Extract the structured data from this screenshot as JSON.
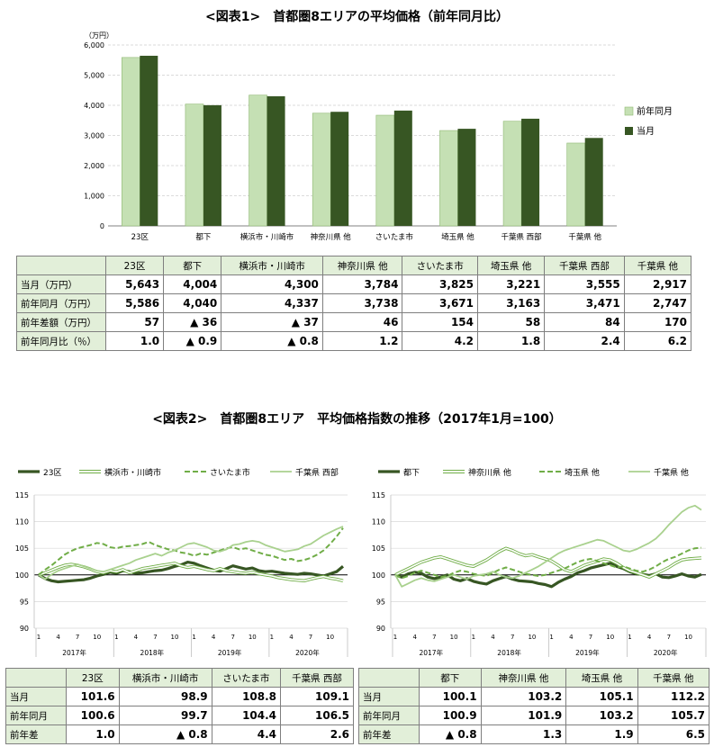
{
  "fig1": {
    "title": "<図表1>　首都圏8エリアの平均価格（前年同月比）",
    "unit": "（万円）",
    "legend": [
      "前年同月",
      "当月"
    ],
    "colors": {
      "prev": "#c5e0b4",
      "curr": "#375623"
    },
    "chart_data": {
      "type": "bar",
      "categories": [
        "23区",
        "都下",
        "横浜市・川崎市",
        "神奈川県 他",
        "さいたま市",
        "埼玉県 他",
        "千葉県 西部",
        "千葉県 他"
      ],
      "series": [
        {
          "name": "前年同月",
          "values": [
            5586,
            4040,
            4337,
            3738,
            3671,
            3163,
            3471,
            2747
          ]
        },
        {
          "name": "当月",
          "values": [
            5643,
            4004,
            4300,
            3784,
            3825,
            3221,
            3555,
            2917
          ]
        }
      ],
      "ylim": [
        0,
        6000
      ],
      "yticks": [
        "0",
        "1,000",
        "2,000",
        "3,000",
        "4,000",
        "5,000",
        "6,000"
      ],
      "grid": true,
      "legend_position": "right"
    },
    "table": {
      "header": [
        "23区",
        "都下",
        "横浜市・川崎市",
        "神奈川県 他",
        "さいたま市",
        "埼玉県 他",
        "千葉県 西部",
        "千葉県 他"
      ],
      "rows": [
        {
          "label": "当月（万円）",
          "cells": [
            "5,643",
            "4,004",
            "4,300",
            "3,784",
            "3,825",
            "3,221",
            "3,555",
            "2,917"
          ]
        },
        {
          "label": "前年同月（万円）",
          "cells": [
            "5,586",
            "4,040",
            "4,337",
            "3,738",
            "3,671",
            "3,163",
            "3,471",
            "2,747"
          ]
        },
        {
          "label": "前年差額（万円）",
          "cells": [
            "57",
            "▲ 36",
            "▲ 37",
            "46",
            "154",
            "58",
            "84",
            "170"
          ]
        },
        {
          "label": "前年同月比（％）",
          "cells": [
            "1.0",
            "▲ 0.9",
            "▲ 0.8",
            "1.2",
            "4.2",
            "1.8",
            "2.4",
            "6.2"
          ]
        }
      ]
    }
  },
  "fig2": {
    "title": "<図表2>　首都圏8エリア　平均価格指数の推移（2017年1月=100）",
    "colors": {
      "dark": "#375623",
      "mid": "#70ad47",
      "light": "#a9d18e"
    },
    "chart_data": [
      {
        "type": "line",
        "ylim": [
          90,
          115
        ],
        "yticks": [
          "90",
          "95",
          "100",
          "105",
          "110",
          "115"
        ],
        "xticks": [
          "1",
          "4",
          "7",
          "10",
          "1",
          "4",
          "7",
          "10",
          "1",
          "4",
          "7",
          "10",
          "1",
          "4",
          "7",
          "10"
        ],
        "years": [
          "2017年",
          "2018年",
          "2019年",
          "2020年"
        ],
        "series": [
          {
            "name": "23区",
            "style": "dark",
            "values": [
              100,
              99.3,
              98.9,
              98.7,
              98.8,
              98.9,
              99.0,
              99.1,
              99.4,
              99.8,
              100.1,
              100.5,
              100.3,
              100.8,
              100.6,
              100.3,
              100.4,
              100.6,
              100.8,
              100.9,
              101.2,
              101.6,
              101.9,
              102.4,
              102.2,
              101.7,
              101.3,
              100.9,
              100.7,
              101.2,
              101.7,
              101.4,
              101.1,
              101.3,
              100.8,
              100.6,
              100.7,
              100.5,
              100.3,
              100.2,
              100.1,
              100.3,
              100.2,
              100.0,
              99.8,
              100.2,
              100.6,
              101.6
            ]
          },
          {
            "name": "横浜市・川崎市",
            "style": "mid",
            "values": [
              100,
              100.4,
              100.9,
              101.4,
              101.8,
              102.0,
              101.8,
              101.5,
              101.1,
              100.6,
              100.4,
              100.8,
              100.6,
              101.0,
              100.4,
              100.8,
              101.2,
              101.4,
              101.6,
              101.8,
              102.0,
              102.2,
              101.7,
              101.4,
              101.6,
              101.3,
              101.0,
              100.8,
              101.2,
              100.8,
              100.6,
              100.4,
              100.3,
              100.5,
              100.2,
              100.0,
              99.8,
              99.5,
              99.3,
              99.1,
              99.0,
              98.9,
              99.2,
              99.5,
              99.7,
              99.4,
              99.2,
              98.9
            ]
          },
          {
            "name": "さいたま市",
            "style": "dash",
            "values": [
              100,
              101.0,
              101.8,
              102.8,
              103.8,
              104.5,
              105.0,
              105.3,
              105.6,
              106.0,
              105.8,
              105.2,
              105.0,
              105.3,
              105.4,
              105.6,
              105.8,
              106.2,
              105.6,
              105.2,
              104.8,
              104.6,
              104.2,
              104.0,
              103.6,
              104.0,
              103.8,
              104.2,
              104.6,
              105.0,
              105.2,
              104.8,
              105.0,
              104.6,
              104.2,
              103.8,
              103.6,
              103.2,
              102.8,
              103.0,
              102.6,
              102.8,
              103.2,
              103.8,
              104.6,
              105.8,
              107.2,
              108.8
            ]
          },
          {
            "name": "千葉県 西部",
            "style": "light",
            "values": [
              100,
              99.2,
              100.1,
              100.8,
              101.2,
              101.6,
              102.0,
              101.6,
              101.2,
              100.8,
              100.6,
              101.0,
              101.4,
              101.8,
              102.2,
              102.8,
              103.2,
              103.6,
              104.0,
              103.6,
              104.2,
              104.6,
              105.2,
              105.8,
              106.0,
              105.6,
              105.2,
              104.6,
              104.4,
              104.8,
              105.6,
              105.8,
              106.2,
              106.4,
              106.2,
              105.6,
              105.2,
              104.8,
              104.4,
              104.6,
              104.8,
              105.4,
              105.8,
              106.6,
              107.4,
              108.0,
              108.6,
              109.1
            ]
          }
        ]
      },
      {
        "type": "line",
        "ylim": [
          90,
          115
        ],
        "yticks": [
          "90",
          "95",
          "100",
          "105",
          "110",
          "115"
        ],
        "xticks": [
          "1",
          "4",
          "7",
          "10",
          "1",
          "4",
          "7",
          "10",
          "1",
          "4",
          "7",
          "10",
          "1",
          "4",
          "7",
          "10"
        ],
        "years": [
          "2017年",
          "2018年",
          "2019年",
          "2020年"
        ],
        "series": [
          {
            "name": "都下",
            "style": "dark",
            "values": [
              100,
              99.6,
              100.2,
              100.5,
              100.3,
              99.6,
              99.3,
              99.6,
              100.0,
              99.2,
              98.9,
              99.3,
              98.8,
              98.5,
              98.3,
              98.9,
              99.3,
              99.7,
              99.2,
              98.9,
              98.8,
              98.7,
              98.4,
              98.2,
              97.8,
              98.6,
              99.2,
              99.7,
              100.4,
              100.8,
              101.3,
              101.6,
              101.9,
              102.2,
              101.6,
              101.2,
              100.6,
              100.2,
              100.1,
              99.9,
              100.2,
              99.6,
              99.5,
              99.8,
              100.2,
              99.8,
              99.6,
              100.1
            ]
          },
          {
            "name": "神奈川県 他",
            "style": "mid",
            "values": [
              100,
              100.6,
              101.2,
              101.8,
              102.4,
              102.8,
              103.2,
              103.4,
              103.0,
              102.6,
              102.2,
              101.8,
              101.6,
              102.2,
              102.8,
              103.6,
              104.4,
              105.0,
              104.6,
              104.0,
              103.6,
              103.8,
              103.4,
              103.0,
              102.6,
              101.8,
              101.0,
              100.6,
              101.2,
              101.8,
              102.2,
              102.6,
              103.0,
              102.8,
              102.2,
              101.4,
              100.8,
              100.4,
              100.0,
              99.6,
              100.2,
              100.8,
              101.4,
              102.2,
              102.8,
              103.0,
              103.1,
              103.2
            ]
          },
          {
            "name": "埼玉県 他",
            "style": "dash",
            "values": [
              100,
              99.4,
              99.8,
              100.4,
              100.8,
              100.4,
              100.0,
              99.6,
              99.8,
              100.4,
              100.8,
              100.6,
              100.2,
              100.0,
              99.8,
              100.4,
              101.0,
              101.4,
              101.0,
              100.6,
              100.2,
              100.0,
              99.8,
              100.0,
              100.4,
              100.8,
              101.2,
              101.8,
              102.4,
              102.8,
              103.0,
              102.6,
              102.2,
              101.8,
              101.4,
              101.6,
              101.2,
              100.8,
              100.6,
              101.0,
              101.6,
              102.4,
              103.0,
              103.4,
              104.0,
              104.6,
              105.0,
              105.1
            ]
          },
          {
            "name": "千葉県 他",
            "style": "light",
            "values": [
              100,
              97.8,
              98.4,
              99.0,
              99.4,
              99.0,
              98.8,
              99.2,
              99.6,
              100.0,
              99.6,
              99.2,
              99.8,
              100.0,
              100.2,
              100.6,
              100.0,
              99.6,
              99.4,
              99.8,
              100.4,
              101.0,
              101.6,
              102.4,
              103.2,
              104.0,
              104.6,
              105.0,
              105.4,
              105.8,
              106.2,
              106.6,
              106.4,
              105.8,
              105.2,
              104.6,
              104.4,
              104.8,
              105.4,
              106.0,
              106.8,
              108.0,
              109.4,
              110.6,
              111.8,
              112.6,
              113.0,
              112.2
            ]
          }
        ]
      }
    ],
    "tables": [
      {
        "header": [
          "23区",
          "横浜市・川崎市",
          "さいたま市",
          "千葉県 西部"
        ],
        "rows": [
          {
            "label": "当月",
            "cells": [
              "101.6",
              "98.9",
              "108.8",
              "109.1"
            ]
          },
          {
            "label": "前年同月",
            "cells": [
              "100.6",
              "99.7",
              "104.4",
              "106.5"
            ]
          },
          {
            "label": "前年差",
            "cells": [
              "1.0",
              "▲ 0.8",
              "4.4",
              "2.6"
            ]
          }
        ]
      },
      {
        "header": [
          "都下",
          "神奈川県 他",
          "埼玉県 他",
          "千葉県 他"
        ],
        "rows": [
          {
            "label": "当月",
            "cells": [
              "100.1",
              "103.2",
              "105.1",
              "112.2"
            ]
          },
          {
            "label": "前年同月",
            "cells": [
              "100.9",
              "101.9",
              "103.2",
              "105.7"
            ]
          },
          {
            "label": "前年差",
            "cells": [
              "▲ 0.8",
              "1.3",
              "1.9",
              "6.5"
            ]
          }
        ]
      }
    ]
  }
}
